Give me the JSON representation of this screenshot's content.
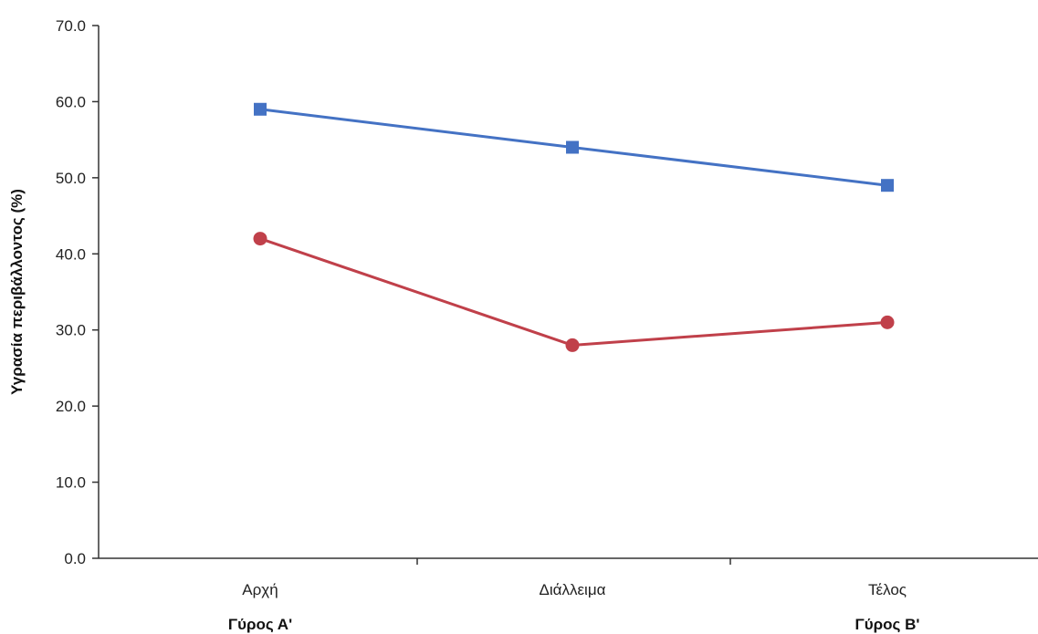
{
  "chart_data": {
    "type": "line",
    "title": "",
    "xlabel": "",
    "ylabel": "Υγρασία περιβάλλοντος (%)",
    "categories": [
      "Αρχή",
      "Διάλλειμα",
      "Τέλος"
    ],
    "category_sublabels": [
      "Γύρος Α'",
      "",
      "Γύρος Β'"
    ],
    "ylim": [
      0,
      70
    ],
    "yticks": [
      "0.0",
      "10.0",
      "20.0",
      "30.0",
      "40.0",
      "50.0",
      "60.0",
      "70.0"
    ],
    "grid": false,
    "series": [
      {
        "values": [
          59,
          54,
          49
        ],
        "color": "#4472C4",
        "marker": "square"
      },
      {
        "values": [
          42,
          28,
          31
        ],
        "color": "#C0404A",
        "marker": "circle"
      }
    ]
  }
}
